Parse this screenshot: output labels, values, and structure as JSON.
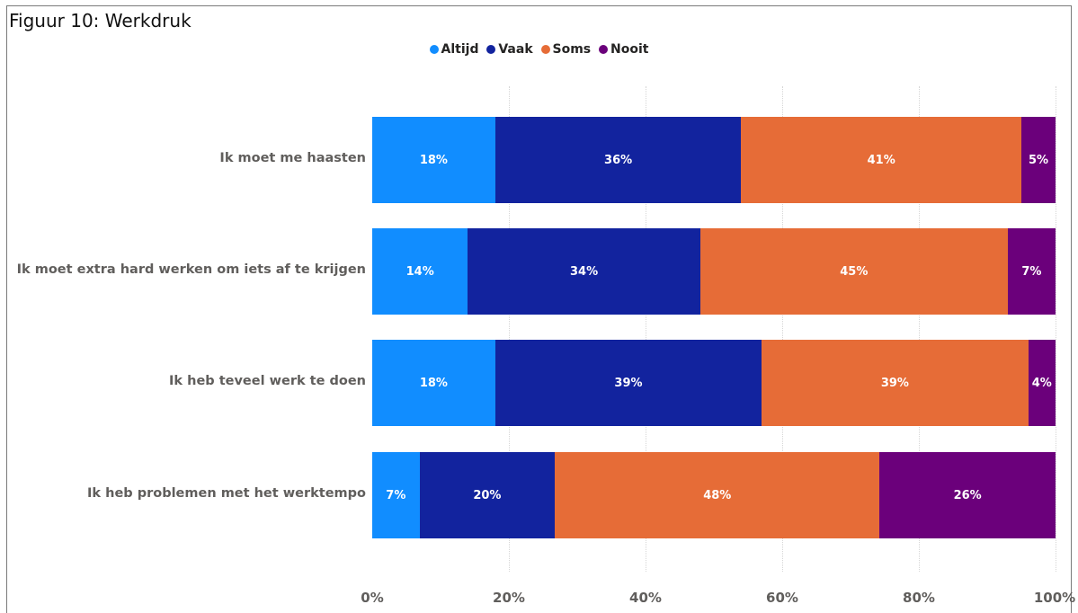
{
  "figure_title": "Figuur 10: Werkdruk",
  "chart_data": {
    "type": "bar",
    "orientation": "horizontal",
    "stacked": "100%",
    "categories": [
      "Ik moet me haasten",
      "Ik moet extra hard werken om iets af te krijgen",
      "Ik heb teveel werk te doen",
      "Ik heb problemen met het werktempo"
    ],
    "series": [
      {
        "name": "Altijd",
        "color": "#118DFF",
        "values": [
          18,
          14,
          18,
          7
        ],
        "labels": [
          "18%",
          "14%",
          "18%",
          "7%"
        ]
      },
      {
        "name": "Vaak",
        "color": "#12239E",
        "values": [
          36,
          34,
          39,
          20
        ],
        "labels": [
          "36%",
          "34%",
          "39%",
          "20%"
        ]
      },
      {
        "name": "Soms",
        "color": "#E66C37",
        "values": [
          41,
          45,
          39,
          48
        ],
        "labels": [
          "41%",
          "45%",
          "39%",
          "48%"
        ]
      },
      {
        "name": "Nooit",
        "color": "#6B007B",
        "values": [
          5,
          7,
          4,
          26
        ],
        "labels": [
          "5%",
          "7%",
          "4%",
          "26%"
        ]
      }
    ],
    "x_ticks": [
      "0%",
      "20%",
      "40%",
      "60%",
      "80%",
      "100%"
    ],
    "xlim": [
      0,
      100
    ],
    "legend_position": "top-center",
    "grid": true
  }
}
